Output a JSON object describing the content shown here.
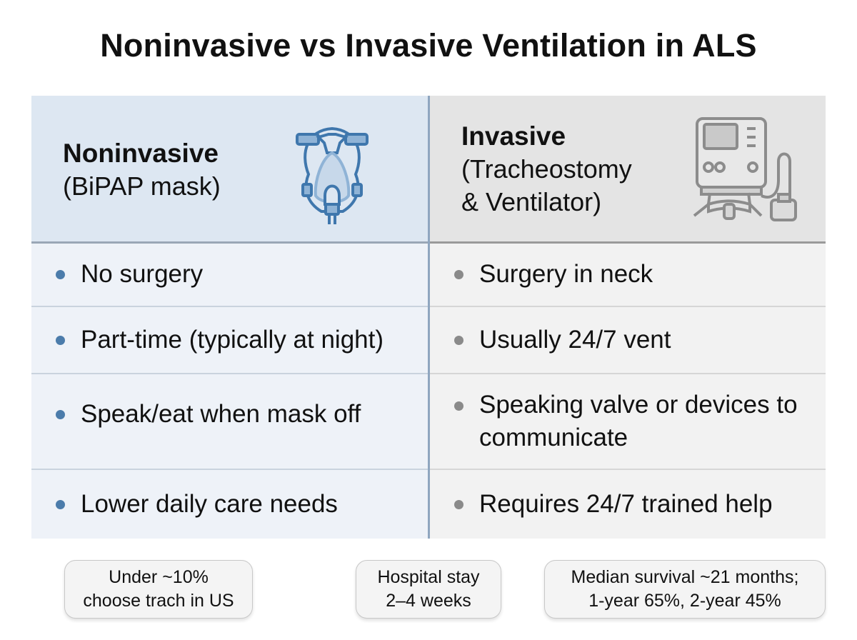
{
  "title": "Noninvasive vs Invasive Ventilation in ALS",
  "colors": {
    "left_accent": "#4b7cab",
    "right_accent": "#8a8a8a",
    "left_bg": "#eef2f8",
    "right_bg": "#f2f2f2"
  },
  "left": {
    "heading": "Noninvasive",
    "subheading": "(BiPAP mask)",
    "icon": "bipap-mask-icon",
    "items": [
      "No surgery",
      "Part-time (typically at night)",
      "Speak/eat when mask off",
      "Lower daily care needs"
    ]
  },
  "right": {
    "heading": "Invasive",
    "subheading_line1": "(Tracheostomy",
    "subheading_line2": "& Ventilator)",
    "icon": "ventilator-icon",
    "items": [
      "Surgery in neck",
      "Usually 24/7 vent",
      "Speaking valve or devices to communicate",
      "Requires 24/7 trained help"
    ]
  },
  "notes": [
    {
      "line1": "Under ~10%",
      "line2": "choose trach in US"
    },
    {
      "line1": "Hospital stay",
      "line2": "2–4 weeks"
    },
    {
      "line1": "Median survival ~21 months;",
      "line2": "1-year 65%, 2-year 45%"
    }
  ]
}
